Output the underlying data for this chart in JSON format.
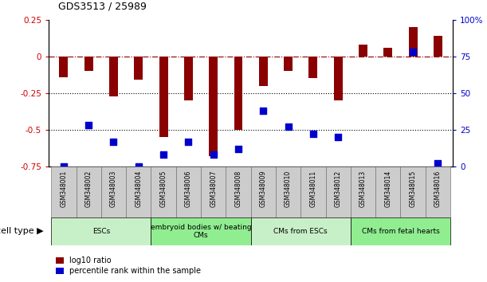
{
  "title": "GDS3513 / 25989",
  "samples": [
    "GSM348001",
    "GSM348002",
    "GSM348003",
    "GSM348004",
    "GSM348005",
    "GSM348006",
    "GSM348007",
    "GSM348008",
    "GSM348009",
    "GSM348010",
    "GSM348011",
    "GSM348012",
    "GSM348013",
    "GSM348014",
    "GSM348015",
    "GSM348016"
  ],
  "log10_ratio": [
    -0.14,
    -0.1,
    -0.27,
    -0.16,
    -0.55,
    -0.3,
    -0.68,
    -0.5,
    -0.2,
    -0.1,
    -0.15,
    -0.3,
    0.08,
    0.06,
    0.2,
    0.14
  ],
  "percentile_rank": [
    0.0,
    28.0,
    17.0,
    0.0,
    8.0,
    17.0,
    8.0,
    12.0,
    38.0,
    27.0,
    22.0,
    20.0,
    null,
    null,
    78.0,
    2.0
  ],
  "ylim_left": [
    -0.75,
    0.25
  ],
  "ylim_right": [
    0,
    100
  ],
  "cell_type_groups": [
    {
      "label": "ESCs",
      "start": 0,
      "end": 3,
      "color": "#c8f0c8"
    },
    {
      "label": "embryoid bodies w/ beating\nCMs",
      "start": 4,
      "end": 7,
      "color": "#90ee90"
    },
    {
      "label": "CMs from ESCs",
      "start": 8,
      "end": 11,
      "color": "#c8f0c8"
    },
    {
      "label": "CMs from fetal hearts",
      "start": 12,
      "end": 15,
      "color": "#90ee90"
    }
  ],
  "bar_color": "#8B0000",
  "dot_color": "#0000CD",
  "bar_width": 0.35,
  "dot_size": 40,
  "cell_type_label": "cell type",
  "tick_color_left": "#CC0000",
  "tick_color_right": "#0000CD",
  "legend_labels": [
    "log10 ratio",
    "percentile rank within the sample"
  ]
}
